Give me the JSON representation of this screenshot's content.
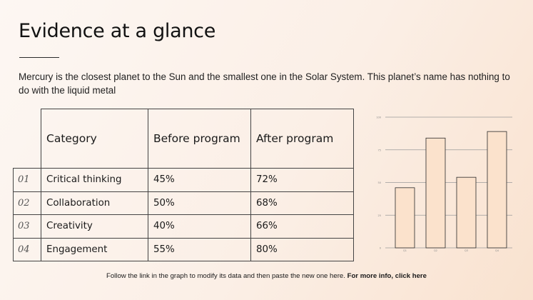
{
  "title": "Evidence at a glance",
  "description": "Mercury is the closest planet to the Sun and the smallest one in the Solar System. This planet’s name has nothing to do with the liquid metal",
  "table": {
    "headers": [
      "Category",
      "Before program",
      "After program"
    ],
    "rows": [
      {
        "num": "01",
        "category": "Critical thinking",
        "before": "45%",
        "after": "72%"
      },
      {
        "num": "02",
        "category": "Collaboration",
        "before": "50%",
        "after": "68%"
      },
      {
        "num": "03",
        "category": "Creativity",
        "before": "40%",
        "after": "66%"
      },
      {
        "num": "04",
        "category": "Engagement",
        "before": "55%",
        "after": "80%"
      }
    ]
  },
  "footer": {
    "text": "Follow the link in the graph to modify its data and then paste the new one here. ",
    "link": "For more info, click here"
  },
  "chart_data": {
    "type": "bar",
    "categories": [
      "Q1",
      "Q2",
      "Q3",
      "Q4"
    ],
    "values": [
      46,
      84,
      54,
      89
    ],
    "ylim": [
      0,
      100
    ],
    "yticks": [
      "0",
      "25",
      "50",
      "75",
      "100"
    ],
    "bar_color": "#fbe2cc",
    "bar_stroke": "#2a2a2a",
    "grid": true
  }
}
